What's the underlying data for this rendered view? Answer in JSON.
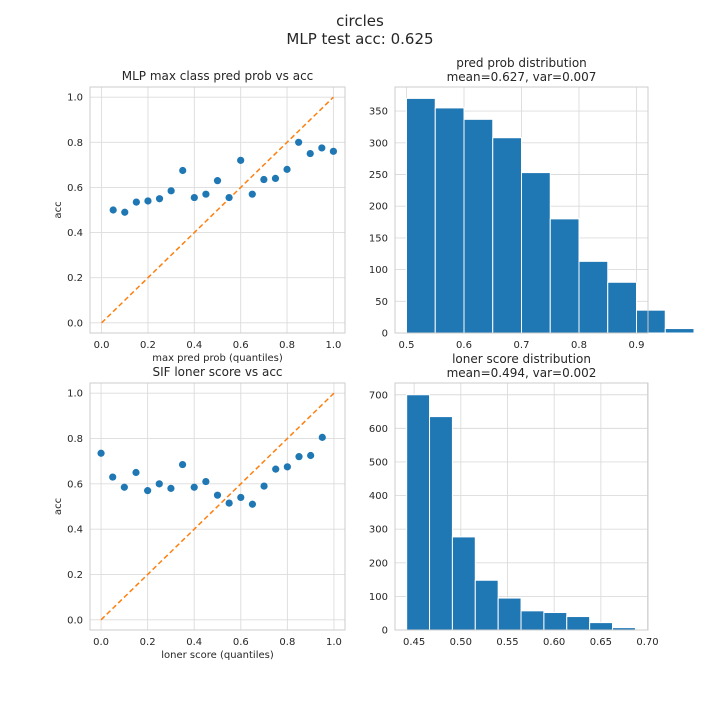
{
  "figure": {
    "title_line1": "circles",
    "title_line2": "MLP test acc: 0.625"
  },
  "chart_data": [
    {
      "type": "scatter",
      "title": "MLP max class pred prob vs acc",
      "xlabel": "max pred prob (quantiles)",
      "ylabel": "acc",
      "xlim": [
        -0.05,
        1.05
      ],
      "ylim": [
        -0.045,
        1.045
      ],
      "xticks": [
        0.0,
        0.2,
        0.4,
        0.6,
        0.8,
        1.0
      ],
      "yticks": [
        0.0,
        0.2,
        0.4,
        0.6,
        0.8,
        1.0
      ],
      "grid": true,
      "x": [
        0.05,
        0.1,
        0.15,
        0.2,
        0.25,
        0.3,
        0.35,
        0.4,
        0.45,
        0.5,
        0.55,
        0.6,
        0.65,
        0.7,
        0.75,
        0.8,
        0.85,
        0.9,
        0.95,
        1.0
      ],
      "y": [
        0.5,
        0.49,
        0.535,
        0.54,
        0.55,
        0.585,
        0.675,
        0.555,
        0.57,
        0.63,
        0.555,
        0.72,
        0.57,
        0.635,
        0.64,
        0.68,
        0.8,
        0.75,
        0.775,
        0.76
      ],
      "reference_line": {
        "x": [
          0,
          1
        ],
        "y": [
          0,
          1
        ],
        "style": "dashed"
      },
      "colors": {
        "points": "#1f77b4",
        "reference": "#ff7f0e"
      }
    },
    {
      "type": "bar",
      "title": "pred prob distribution",
      "subtitle": "mean=0.627, var=0.007",
      "xlim": [
        0.48,
        0.92
      ],
      "ylim": [
        0,
        388
      ],
      "xticks": [
        0.5,
        0.6,
        0.7,
        0.8,
        0.9
      ],
      "yticks": [
        0,
        50,
        100,
        150,
        200,
        250,
        300,
        350
      ],
      "grid": true,
      "bin_edges": [
        0.5,
        0.55,
        0.6,
        0.65,
        0.7,
        0.75,
        0.8,
        0.85,
        0.9,
        0.95
      ],
      "bin_start": 0.5,
      "bin_width": 0.05,
      "values": [
        370,
        355,
        337,
        308,
        253,
        180,
        113,
        80,
        36,
        7
      ],
      "colors": {
        "bars": "#1f77b4"
      }
    },
    {
      "type": "scatter",
      "title": "SIF loner score vs acc",
      "xlabel": "loner score (quantiles)",
      "ylabel": "acc",
      "xlim": [
        -0.0475,
        1.0475
      ],
      "ylim": [
        -0.045,
        1.045
      ],
      "xticks": [
        0.0,
        0.2,
        0.4,
        0.6,
        0.8,
        1.0
      ],
      "yticks": [
        0.0,
        0.2,
        0.4,
        0.6,
        0.8,
        1.0
      ],
      "grid": true,
      "x": [
        0.0,
        0.05,
        0.1,
        0.15,
        0.2,
        0.25,
        0.3,
        0.35,
        0.4,
        0.45,
        0.5,
        0.55,
        0.6,
        0.65,
        0.7,
        0.75,
        0.8,
        0.85,
        0.9,
        0.95
      ],
      "y": [
        0.735,
        0.63,
        0.585,
        0.65,
        0.57,
        0.6,
        0.58,
        0.685,
        0.585,
        0.61,
        0.55,
        0.515,
        0.54,
        0.51,
        0.59,
        0.665,
        0.675,
        0.72,
        0.725,
        0.805
      ],
      "reference_line": {
        "x": [
          0,
          1
        ],
        "y": [
          0,
          1
        ],
        "style": "dashed"
      },
      "colors": {
        "points": "#1f77b4",
        "reference": "#ff7f0e"
      }
    },
    {
      "type": "bar",
      "title": "loner score distribution",
      "subtitle": "mean=0.494, var=0.002",
      "xlim": [
        0.4295,
        0.7005
      ],
      "ylim": [
        0,
        735
      ],
      "xticks": [
        0.45,
        0.5,
        0.55,
        0.6,
        0.65,
        0.7
      ],
      "yticks": [
        0,
        100,
        200,
        300,
        400,
        500,
        600,
        700
      ],
      "grid": true,
      "bin_edges": [
        0.442,
        0.4665,
        0.491,
        0.5155,
        0.54,
        0.5645,
        0.589,
        0.6135,
        0.638,
        0.6625,
        0.687
      ],
      "bin_start": 0.442,
      "bin_width": 0.0245,
      "values": [
        700,
        635,
        277,
        148,
        95,
        57,
        52,
        40,
        22,
        7
      ],
      "colors": {
        "bars": "#1f77b4"
      }
    }
  ]
}
